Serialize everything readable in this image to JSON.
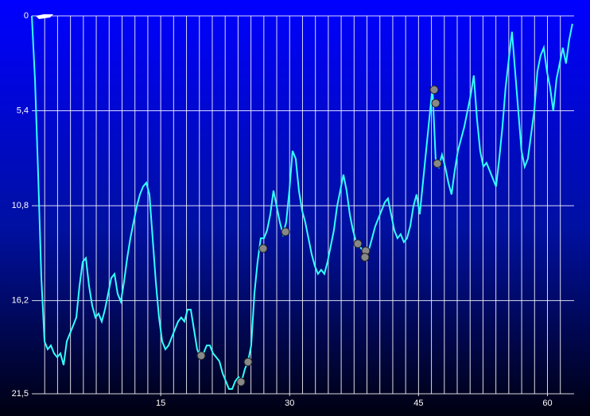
{
  "chart_data": {
    "type": "line",
    "x": [
      0,
      0.37,
      0.74,
      1.11,
      1.48,
      1.85,
      2.22,
      2.59,
      2.96,
      3.33,
      3.7,
      4.07,
      4.44,
      4.81,
      5.18,
      5.55,
      5.92,
      6.29,
      6.66,
      7.03,
      7.4,
      7.77,
      8.14,
      8.51,
      8.88,
      9.25,
      9.62,
      9.99,
      10.36,
      10.73,
      11.1,
      11.47,
      11.84,
      12.21,
      12.58,
      12.95,
      13.32,
      13.69,
      14.06,
      14.43,
      14.8,
      15.17,
      15.54,
      15.91,
      16.28,
      16.65,
      17.02,
      17.39,
      17.76,
      18.13,
      18.5,
      18.87,
      19.24,
      19.61,
      19.98,
      20.35,
      20.72,
      21.09,
      21.46,
      21.83,
      22.2,
      22.57,
      22.94,
      23.31,
      23.68,
      24.05,
      24.42,
      24.79,
      25.16,
      25.53,
      25.9,
      26.27,
      26.64,
      27.01,
      27.38,
      27.75,
      28.12,
      28.49,
      28.86,
      29.23,
      29.6,
      29.97,
      30.34,
      30.71,
      31.08,
      31.45,
      31.82,
      32.19,
      32.56,
      32.93,
      33.3,
      33.67,
      34.04,
      34.41,
      34.78,
      35.15,
      35.52,
      35.89,
      36.26,
      36.63,
      37,
      37.37,
      37.74,
      38.11,
      38.48,
      38.85,
      39.22,
      39.59,
      39.96,
      40.33,
      40.7,
      41.07,
      41.44,
      41.81,
      42.18,
      42.55,
      42.92,
      43.29,
      43.66,
      44.03,
      44.4,
      44.77,
      45.14,
      45.51,
      45.88,
      46.25,
      46.62,
      46.99,
      47.36,
      47.73,
      48.1,
      48.47,
      48.84,
      49.21,
      49.58,
      49.95,
      50.32,
      50.69,
      51.06,
      51.43,
      51.8,
      52.17,
      52.54,
      52.91,
      53.28,
      53.65,
      54.02,
      54.39,
      54.76,
      55.13,
      55.5,
      55.87,
      56.24,
      56.61,
      56.98,
      57.35,
      57.72,
      58.09,
      58.46,
      58.83,
      59.2,
      59.57,
      59.94,
      60.31,
      60.68,
      61.05,
      61.42,
      61.79,
      62.16,
      62.53,
      62.9
    ],
    "series": [
      {
        "color": "#33ffff",
        "values": [
          0,
          3.61,
          9.03,
          14.91,
          18.52,
          18.97,
          18.75,
          19.2,
          19.42,
          19.2,
          19.87,
          18.52,
          18.07,
          17.62,
          17.16,
          15.36,
          14.0,
          13.78,
          15.36,
          16.49,
          17.16,
          16.94,
          17.39,
          16.71,
          15.81,
          14.91,
          14.68,
          15.81,
          16.26,
          15.13,
          13.78,
          12.65,
          11.74,
          10.84,
          10.16,
          9.71,
          9.49,
          10.16,
          12.65,
          15.13,
          17.16,
          18.52,
          18.97,
          18.75,
          18.29,
          17.84,
          17.39,
          17.16,
          17.39,
          16.71,
          16.71,
          17.84,
          18.97,
          19.42,
          19.2,
          18.75,
          18.75,
          19.2,
          19.42,
          19.65,
          20.33,
          20.78,
          21.23,
          21.23,
          20.78,
          20.55,
          20.78,
          20.1,
          19.65,
          18.75,
          15.81,
          14.0,
          12.65,
          12.65,
          12.2,
          11.29,
          9.94,
          10.84,
          11.74,
          12.42,
          11.74,
          9.94,
          7.68,
          8.13,
          9.94,
          11.07,
          11.74,
          12.65,
          13.55,
          14.23,
          14.68,
          14.45,
          14.68,
          14.0,
          13.1,
          12.2,
          10.84,
          9.94,
          9.03,
          9.94,
          11.29,
          12.2,
          12.87,
          13.1,
          13.32,
          13.55,
          13.32,
          12.65,
          11.97,
          11.52,
          11.07,
          10.61,
          10.39,
          11.29,
          12.2,
          12.65,
          12.42,
          12.87,
          12.65,
          11.97,
          10.84,
          10.16,
          11.29,
          9.49,
          7.68,
          5.87,
          4.07,
          8.13,
          8.58,
          7.9,
          8.58,
          9.49,
          10.16,
          8.81,
          7.68,
          7.0,
          6.32,
          5.42,
          4.52,
          3.39,
          5.87,
          7.68,
          8.58,
          8.36,
          8.81,
          9.26,
          9.71,
          8.13,
          6.32,
          4.07,
          2.48,
          0.9,
          3.16,
          5.42,
          7.68,
          8.58,
          8.13,
          6.77,
          5.42,
          3.16,
          2.26,
          1.81,
          3.16,
          4.07,
          5.42,
          3.61,
          2.71,
          1.81,
          2.71,
          1.36,
          0.45
        ]
      }
    ],
    "xlim": [
      0,
      63.1
    ],
    "xticks": [
      15,
      30,
      45,
      60
    ],
    "xgrid": [
      1.5,
      3,
      4.5,
      6,
      7.5,
      9,
      10.5,
      12,
      13.5,
      15,
      16.5,
      18,
      19.5,
      21,
      22.5,
      24,
      25.5,
      27,
      28.5,
      30,
      31.5,
      33,
      34.5,
      36,
      37.5,
      39,
      40.5,
      42,
      43.5,
      45,
      46.5,
      48,
      49.5,
      51,
      52.5,
      54,
      55.5,
      57,
      58.5,
      60,
      61.5
    ],
    "ylim": [
      0,
      21.5
    ],
    "y_inverted": true,
    "yticks": [
      0,
      {
        "value": 5.4,
        "label": "5,4"
      },
      {
        "value": 10.8,
        "label": "10,8"
      },
      {
        "value": 16.2,
        "label": "16,2"
      },
      {
        "value": 21.5,
        "label": "21,5"
      }
    ],
    "grid": true
  }
}
